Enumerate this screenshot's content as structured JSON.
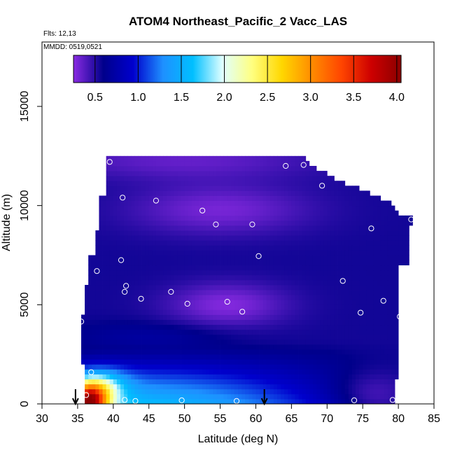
{
  "chart_data": {
    "type": "heatmap",
    "title": "ATOM4 Northeast_Pacific_2 Vacc_LAS",
    "flights_label": "Flts: 12,13",
    "dates_label": "MMDD: 0519,0521",
    "xlabel": "Latitude (deg N)",
    "ylabel": "Altitude (m)",
    "xlim": [
      30,
      85
    ],
    "ylim": [
      0,
      17500
    ],
    "xticks": [
      "30",
      "35",
      "40",
      "45",
      "50",
      "55",
      "60",
      "65",
      "70",
      "75",
      "80",
      "85"
    ],
    "yticks": [
      "0",
      "5000",
      "10000",
      "15000"
    ],
    "colorbar": {
      "range": [
        0.25,
        4.05
      ],
      "ticks": [
        "0.5",
        "1.0",
        "1.5",
        "2.0",
        "2.5",
        "3.0",
        "3.5",
        "4.0"
      ],
      "colors": [
        "#8a2be2",
        "#00008b",
        "#0000cd",
        "#1e90ff",
        "#00bfff",
        "#e0ffff",
        "#ffff80",
        "#ffd700",
        "#ff8c00",
        "#ff4500",
        "#cd0000",
        "#8b0000"
      ]
    },
    "profile_markers_lat": [
      34.7,
      61.2
    ],
    "sample_points": [
      {
        "x": 39.5,
        "y": 12200
      },
      {
        "x": 41.3,
        "y": 10400
      },
      {
        "x": 46.0,
        "y": 10250
      },
      {
        "x": 52.5,
        "y": 9750
      },
      {
        "x": 54.4,
        "y": 9050
      },
      {
        "x": 59.5,
        "y": 9050
      },
      {
        "x": 64.2,
        "y": 12000
      },
      {
        "x": 66.7,
        "y": 12050
      },
      {
        "x": 69.3,
        "y": 11000
      },
      {
        "x": 76.2,
        "y": 8850
      },
      {
        "x": 81.8,
        "y": 9300
      },
      {
        "x": 37.7,
        "y": 6700
      },
      {
        "x": 41.1,
        "y": 7250
      },
      {
        "x": 41.8,
        "y": 5950
      },
      {
        "x": 41.6,
        "y": 5650
      },
      {
        "x": 48.1,
        "y": 5650
      },
      {
        "x": 43.9,
        "y": 5300
      },
      {
        "x": 50.4,
        "y": 5050
      },
      {
        "x": 56.0,
        "y": 5150
      },
      {
        "x": 58.1,
        "y": 4650
      },
      {
        "x": 60.4,
        "y": 7450
      },
      {
        "x": 72.2,
        "y": 6200
      },
      {
        "x": 74.7,
        "y": 4600
      },
      {
        "x": 77.9,
        "y": 5200
      },
      {
        "x": 80.2,
        "y": 4400
      },
      {
        "x": 35.5,
        "y": 4150
      },
      {
        "x": 36.9,
        "y": 1600
      },
      {
        "x": 36.2,
        "y": 450
      },
      {
        "x": 41.6,
        "y": 200
      },
      {
        "x": 43.1,
        "y": 150
      },
      {
        "x": 49.6,
        "y": 180
      },
      {
        "x": 57.3,
        "y": 150
      },
      {
        "x": 73.8,
        "y": 180
      },
      {
        "x": 79.2,
        "y": 200
      }
    ]
  }
}
